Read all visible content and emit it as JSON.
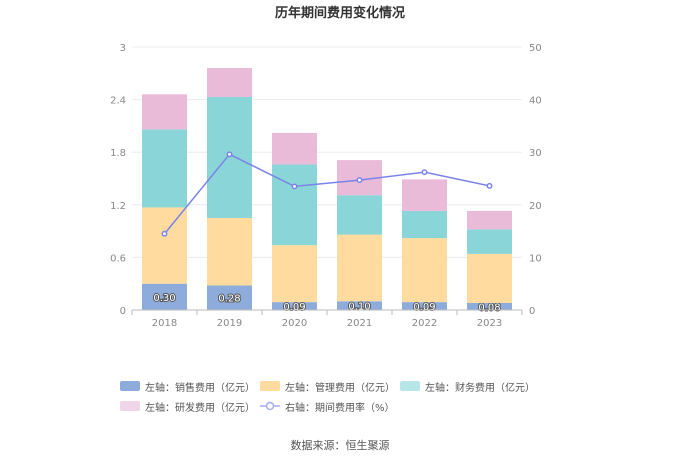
{
  "chart_data": {
    "type": "bar",
    "title": "历年期间费用变化情况",
    "categories": [
      "2018",
      "2019",
      "2020",
      "2021",
      "2022",
      "2023"
    ],
    "stacked": true,
    "left_axis": {
      "ylim": [
        0,
        3
      ],
      "ticks": [
        "0",
        "0.6",
        "1.2",
        "1.8",
        "2.4",
        "3"
      ]
    },
    "right_axis": {
      "ylim": [
        0,
        50
      ],
      "ticks": [
        "0",
        "10",
        "20",
        "30",
        "40",
        "50"
      ]
    },
    "series": [
      {
        "name": "左轴：销售费用（亿元）",
        "type": "bar",
        "axis": "left",
        "color": "#8eacdb",
        "values": [
          0.3,
          0.28,
          0.09,
          0.1,
          0.09,
          0.08
        ],
        "labels": [
          "0.30",
          "0.28",
          "0.09",
          "0.10",
          "0.09",
          "0.08"
        ]
      },
      {
        "name": "左轴：管理费用（亿元）",
        "type": "bar",
        "axis": "left",
        "color": "#ffdba0",
        "values": [
          0.87,
          0.77,
          0.65,
          0.76,
          0.73,
          0.56
        ]
      },
      {
        "name": "左轴：财务费用（亿元）",
        "type": "bar",
        "axis": "left",
        "color": "#89d5d8",
        "values": [
          0.89,
          1.38,
          0.92,
          0.45,
          0.31,
          0.28
        ]
      },
      {
        "name": "左轴：研发费用（亿元）",
        "type": "bar",
        "axis": "left",
        "color": "#e9bbd9",
        "values": [
          0.4,
          0.33,
          0.36,
          0.4,
          0.36,
          0.21
        ]
      },
      {
        "name": "右轴：期间费用率（%）",
        "type": "line",
        "axis": "right",
        "color": "#7b83e8",
        "values": [
          14.5,
          29.6,
          23.5,
          24.7,
          26.2,
          23.6
        ]
      }
    ],
    "legend": "bottom",
    "grid": true
  },
  "source": "数据来源：恒生聚源"
}
